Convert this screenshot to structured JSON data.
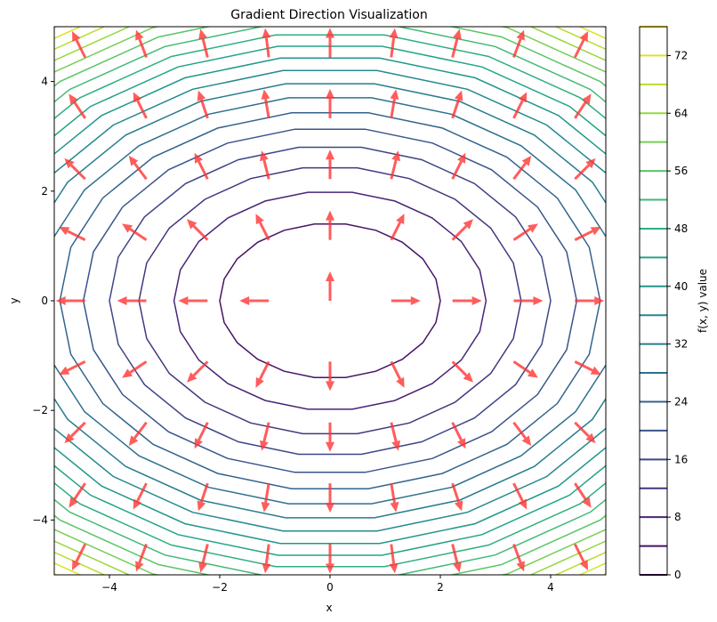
{
  "chart_data": {
    "type": "contour",
    "title": "Gradient Direction Visualization",
    "xlabel": "x",
    "ylabel": "y",
    "xlim": [
      -5,
      5
    ],
    "ylim": [
      -5,
      5
    ],
    "x_ticks": [
      -4,
      -2,
      0,
      2,
      4
    ],
    "y_ticks": [
      -4,
      -2,
      0,
      2,
      4
    ],
    "x_tick_labels": [
      "−4",
      "−2",
      "0",
      "2",
      "4"
    ],
    "y_tick_labels": [
      "−4",
      "−2",
      "0",
      "2",
      "4"
    ],
    "function": "f(x, y) = x^2 + 2*y^2",
    "contour_levels": [
      0,
      4,
      8,
      12,
      16,
      20,
      24,
      28,
      32,
      36,
      40,
      44,
      48,
      52,
      56,
      60,
      64,
      68,
      72,
      76
    ],
    "colorbar": {
      "label": "f(x, y) value",
      "ticks": [
        0,
        8,
        16,
        24,
        32,
        40,
        48,
        56,
        64,
        72
      ],
      "range": [
        0,
        76
      ],
      "colormap": "viridis"
    },
    "quiver": {
      "x": [
        -4.44,
        -3.33,
        -2.22,
        -1.11,
        0,
        1.11,
        2.22,
        3.33,
        4.44
      ],
      "y": [
        -4.44,
        -3.33,
        -2.22,
        -1.11,
        0,
        1.11,
        2.22,
        3.33,
        4.44
      ],
      "direction": "normalized gradient",
      "color": "#ff3333"
    }
  }
}
